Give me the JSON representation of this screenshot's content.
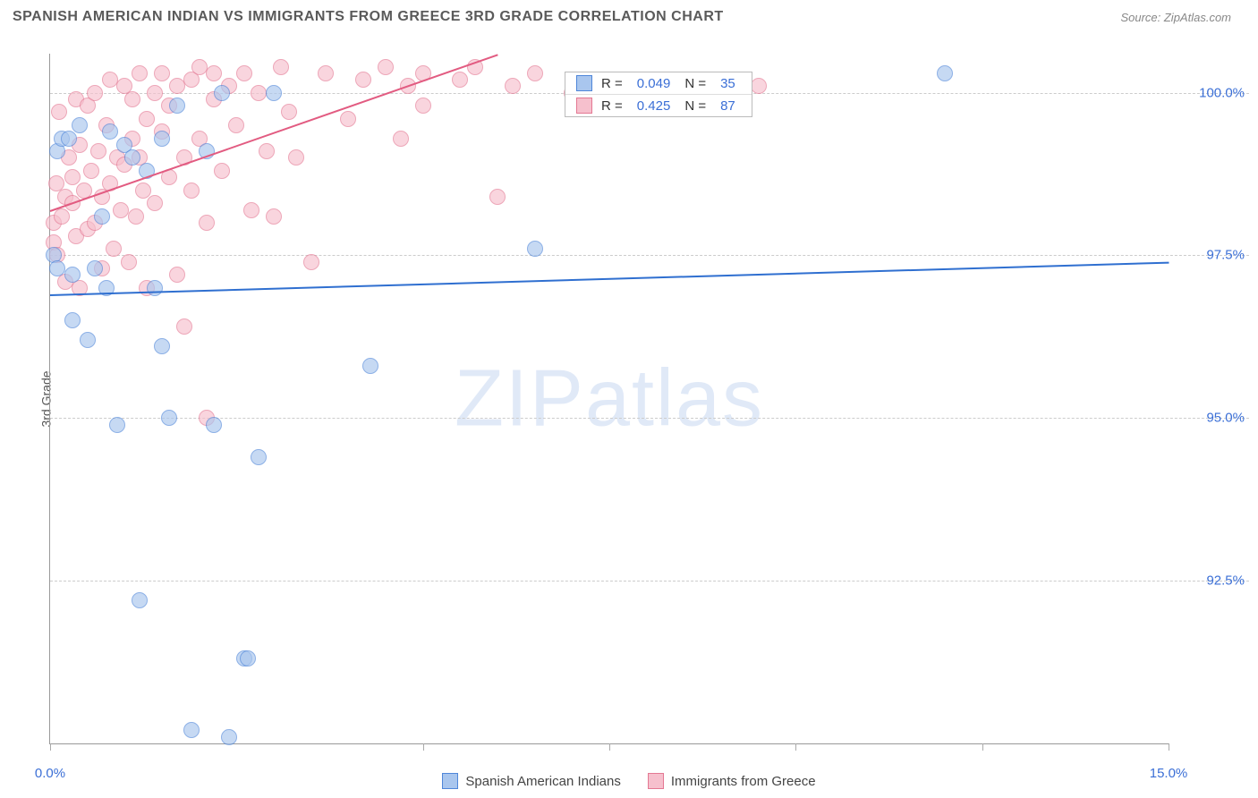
{
  "header": {
    "title": "SPANISH AMERICAN INDIAN VS IMMIGRANTS FROM GREECE 3RD GRADE CORRELATION CHART",
    "source": "Source: ZipAtlas.com"
  },
  "watermark": "ZIPatlas",
  "axes": {
    "y_label": "3rd Grade",
    "x_min": 0.0,
    "x_max": 15.0,
    "y_min": 90.0,
    "y_max": 100.6,
    "y_ticks": [
      92.5,
      95.0,
      97.5,
      100.0
    ],
    "y_tick_labels": [
      "92.5%",
      "95.0%",
      "97.5%",
      "100.0%"
    ],
    "x_tick_positions": [
      0.0,
      5.0,
      7.5,
      10.0,
      12.5,
      15.0
    ],
    "x_min_label": "0.0%",
    "x_max_label": "15.0%"
  },
  "series": {
    "blue": {
      "name": "Spanish American Indians",
      "fill": "#a9c6ee",
      "stroke": "#4f86d9",
      "line_color": "#2f6fd0",
      "marker_radius": 9,
      "trend": {
        "x1": 0.0,
        "y1": 96.9,
        "x2": 15.0,
        "y2": 97.4
      },
      "R": "0.049",
      "N": "35",
      "points": [
        [
          0.05,
          97.5
        ],
        [
          0.1,
          97.3
        ],
        [
          0.1,
          99.1
        ],
        [
          0.15,
          99.3
        ],
        [
          0.25,
          99.3
        ],
        [
          0.3,
          96.5
        ],
        [
          0.3,
          97.2
        ],
        [
          0.4,
          99.5
        ],
        [
          0.5,
          96.2
        ],
        [
          0.6,
          97.3
        ],
        [
          0.7,
          98.1
        ],
        [
          0.75,
          97.0
        ],
        [
          0.8,
          99.4
        ],
        [
          0.9,
          94.9
        ],
        [
          1.0,
          99.2
        ],
        [
          1.1,
          99.0
        ],
        [
          1.2,
          92.2
        ],
        [
          1.3,
          98.8
        ],
        [
          1.4,
          97.0
        ],
        [
          1.5,
          99.3
        ],
        [
          1.5,
          96.1
        ],
        [
          1.6,
          95.0
        ],
        [
          1.7,
          99.8
        ],
        [
          1.9,
          90.2
        ],
        [
          2.1,
          99.1
        ],
        [
          2.2,
          94.9
        ],
        [
          2.3,
          100.0
        ],
        [
          2.4,
          90.1
        ],
        [
          2.6,
          91.3
        ],
        [
          2.65,
          91.3
        ],
        [
          2.8,
          94.4
        ],
        [
          3.0,
          100.0
        ],
        [
          4.3,
          95.8
        ],
        [
          6.5,
          97.6
        ],
        [
          12.0,
          100.3
        ]
      ]
    },
    "pink": {
      "name": "Immigrants from Greece",
      "fill": "#f6c0cd",
      "stroke": "#e47893",
      "line_color": "#e25b81",
      "marker_radius": 9,
      "trend": {
        "x1": 0.0,
        "y1": 98.2,
        "x2": 6.0,
        "y2": 100.6
      },
      "R": "0.425",
      "N": "87",
      "points": [
        [
          0.05,
          98.0
        ],
        [
          0.05,
          97.7
        ],
        [
          0.08,
          98.6
        ],
        [
          0.1,
          97.5
        ],
        [
          0.12,
          99.7
        ],
        [
          0.15,
          98.1
        ],
        [
          0.2,
          98.4
        ],
        [
          0.2,
          97.1
        ],
        [
          0.25,
          99.0
        ],
        [
          0.3,
          98.7
        ],
        [
          0.3,
          98.3
        ],
        [
          0.35,
          99.9
        ],
        [
          0.35,
          97.8
        ],
        [
          0.4,
          97.0
        ],
        [
          0.4,
          99.2
        ],
        [
          0.45,
          98.5
        ],
        [
          0.5,
          99.8
        ],
        [
          0.5,
          97.9
        ],
        [
          0.55,
          98.8
        ],
        [
          0.6,
          98.0
        ],
        [
          0.6,
          100.0
        ],
        [
          0.65,
          99.1
        ],
        [
          0.7,
          98.4
        ],
        [
          0.7,
          97.3
        ],
        [
          0.75,
          99.5
        ],
        [
          0.8,
          98.6
        ],
        [
          0.8,
          100.2
        ],
        [
          0.85,
          97.6
        ],
        [
          0.9,
          99.0
        ],
        [
          0.95,
          98.2
        ],
        [
          1.0,
          98.9
        ],
        [
          1.0,
          100.1
        ],
        [
          1.05,
          97.4
        ],
        [
          1.1,
          99.3
        ],
        [
          1.1,
          99.9
        ],
        [
          1.15,
          98.1
        ],
        [
          1.2,
          100.3
        ],
        [
          1.2,
          99.0
        ],
        [
          1.25,
          98.5
        ],
        [
          1.3,
          99.6
        ],
        [
          1.3,
          97.0
        ],
        [
          1.4,
          100.0
        ],
        [
          1.4,
          98.3
        ],
        [
          1.5,
          99.4
        ],
        [
          1.5,
          100.3
        ],
        [
          1.6,
          98.7
        ],
        [
          1.6,
          99.8
        ],
        [
          1.7,
          97.2
        ],
        [
          1.7,
          100.1
        ],
        [
          1.8,
          99.0
        ],
        [
          1.8,
          96.4
        ],
        [
          1.9,
          100.2
        ],
        [
          1.9,
          98.5
        ],
        [
          2.0,
          99.3
        ],
        [
          2.0,
          100.4
        ],
        [
          2.1,
          98.0
        ],
        [
          2.1,
          95.0
        ],
        [
          2.2,
          99.9
        ],
        [
          2.2,
          100.3
        ],
        [
          2.3,
          98.8
        ],
        [
          2.4,
          100.1
        ],
        [
          2.5,
          99.5
        ],
        [
          2.6,
          100.3
        ],
        [
          2.7,
          98.2
        ],
        [
          2.8,
          100.0
        ],
        [
          2.9,
          99.1
        ],
        [
          3.0,
          98.1
        ],
        [
          3.1,
          100.4
        ],
        [
          3.2,
          99.7
        ],
        [
          3.3,
          99.0
        ],
        [
          3.5,
          97.4
        ],
        [
          3.7,
          100.3
        ],
        [
          4.0,
          99.6
        ],
        [
          4.2,
          100.2
        ],
        [
          4.5,
          100.4
        ],
        [
          4.7,
          99.3
        ],
        [
          4.8,
          100.1
        ],
        [
          5.0,
          100.3
        ],
        [
          5.0,
          99.8
        ],
        [
          5.5,
          100.2
        ],
        [
          5.7,
          100.4
        ],
        [
          6.0,
          98.4
        ],
        [
          6.2,
          100.1
        ],
        [
          6.5,
          100.3
        ],
        [
          7.0,
          100.0
        ],
        [
          7.5,
          100.2
        ],
        [
          9.5,
          100.1
        ]
      ]
    }
  },
  "legend_bottom": {
    "items": [
      {
        "label": "Spanish American Indians",
        "fill": "#a9c6ee",
        "stroke": "#4f86d9"
      },
      {
        "label": "Immigrants from Greece",
        "fill": "#f6c0cd",
        "stroke": "#e47893"
      }
    ]
  },
  "legend_top": {
    "rows": [
      {
        "fill": "#a9c6ee",
        "stroke": "#4f86d9",
        "R_label": "R =",
        "R": "0.049",
        "N_label": "N =",
        "N": "35"
      },
      {
        "fill": "#f6c0cd",
        "stroke": "#e47893",
        "R_label": "R =",
        "R": "0.425",
        "N_label": "N =",
        "N": "87"
      }
    ]
  },
  "style": {
    "background_color": "#ffffff",
    "grid_color": "#cccccc",
    "axis_color": "#999999",
    "title_color": "#5a5a5a",
    "tick_label_color": "#3b6fd6"
  }
}
